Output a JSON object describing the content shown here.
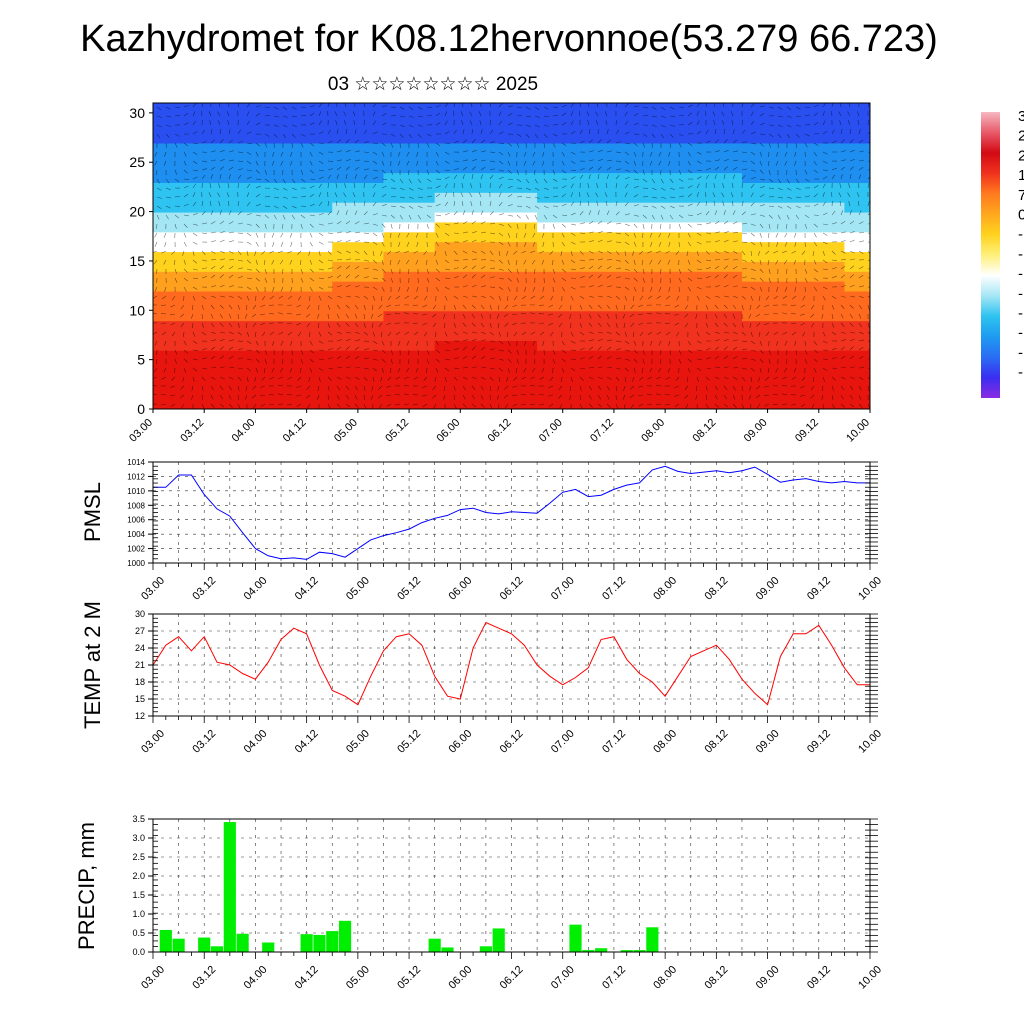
{
  "title": "Kazhydromet for K08.12hervonnoe(53.279 66.723)",
  "subtitle": "03 ☆☆☆☆☆☆☆☆ 2025",
  "time_ticks": [
    "03.00",
    "03.12",
    "04.00",
    "04.12",
    "05.00",
    "05.12",
    "06.00",
    "06.12",
    "07.00",
    "07.12",
    "08.00",
    "08.12",
    "09.00",
    "09.12",
    "10.00"
  ],
  "colorbar": {
    "stops": [
      "#8a2be2",
      "#3a2ef0",
      "#2a6df4",
      "#1e9bf0",
      "#2ec3f0",
      "#a5e6f5",
      "#ffffff",
      "#fff07a",
      "#ffd21e",
      "#ffa81e",
      "#ff7a1e",
      "#f0321e",
      "#d20a14",
      "#e85a6a",
      "#f5b8c0"
    ],
    "visible_labels": [
      "3",
      "2",
      "2",
      "1",
      "7",
      "0",
      "-",
      "-",
      "-",
      "-",
      "-",
      "-",
      "-",
      "-"
    ]
  },
  "chart_data": [
    {
      "type": "heatmap",
      "title": "",
      "xlabel": "",
      "ylabel": "",
      "x_ticks": [
        "03.00",
        "03.12",
        "04.00",
        "04.12",
        "05.00",
        "05.12",
        "06.00",
        "06.12",
        "07.00",
        "07.12",
        "08.00",
        "08.12",
        "09.00",
        "09.12",
        "10.00"
      ],
      "y_ticks": [
        0,
        5,
        10,
        15,
        20,
        25,
        30
      ],
      "ylim": [
        0,
        31
      ],
      "note_overlay": "wind barbs",
      "cold_layer_level": [
        16,
        16,
        16,
        16,
        17,
        18,
        19,
        19,
        18,
        18,
        18,
        18,
        17,
        17,
        16
      ]
    },
    {
      "type": "line",
      "ylabel": "PMSL",
      "ylim": [
        1000,
        1014
      ],
      "y_ticks": [
        1000,
        1002,
        1004,
        1006,
        1008,
        1010,
        1012,
        1014
      ],
      "color": "#0000ff",
      "x": [
        0,
        3,
        6,
        9,
        12,
        15,
        18,
        21,
        24,
        27,
        30,
        33,
        36,
        39,
        42,
        45,
        48,
        51,
        54,
        57,
        60,
        63,
        66,
        69,
        72,
        75,
        78,
        81,
        84,
        87,
        90,
        93,
        96,
        99,
        102,
        105,
        108,
        111,
        114,
        117,
        120,
        123,
        126,
        129,
        132,
        135,
        138,
        141,
        144,
        147,
        150,
        153,
        156,
        159,
        162,
        165,
        168
      ],
      "values": [
        1010.5,
        1010.5,
        1012.2,
        1012.2,
        1009.5,
        1007.5,
        1006.5,
        1004.2,
        1002.0,
        1001.0,
        1000.6,
        1000.7,
        1000.5,
        1001.5,
        1001.3,
        1000.8,
        1002.0,
        1003.2,
        1003.8,
        1004.2,
        1004.7,
        1005.6,
        1006.2,
        1006.6,
        1007.4,
        1007.6,
        1007.0,
        1006.8,
        1007.1,
        1007.0,
        1006.9,
        1008.3,
        1009.8,
        1010.2,
        1009.2,
        1009.4,
        1010.2,
        1010.8,
        1011.1,
        1012.9,
        1013.4,
        1012.7,
        1012.4,
        1012.6,
        1012.8,
        1012.5,
        1012.8,
        1013.3,
        1012.3,
        1011.2,
        1011.5,
        1011.7,
        1011.3,
        1011.1,
        1011.3,
        1011.1,
        1011.1
      ]
    },
    {
      "type": "line",
      "ylabel": "TEMP at 2 M",
      "ylim": [
        12,
        30
      ],
      "y_ticks": [
        12,
        15,
        18,
        21,
        24,
        27,
        30
      ],
      "color": "#ff0000",
      "x": [
        0,
        3,
        6,
        9,
        12,
        15,
        18,
        21,
        24,
        27,
        30,
        33,
        36,
        39,
        42,
        45,
        48,
        51,
        54,
        57,
        60,
        63,
        66,
        69,
        72,
        75,
        78,
        81,
        84,
        87,
        90,
        93,
        96,
        99,
        102,
        105,
        108,
        111,
        114,
        117,
        120,
        123,
        126,
        129,
        132,
        135,
        138,
        141,
        144,
        147,
        150,
        153,
        156,
        159,
        162,
        165,
        168
      ],
      "values": [
        21.0,
        24.5,
        26.0,
        23.5,
        26.0,
        21.5,
        21.0,
        19.5,
        18.5,
        21.5,
        25.5,
        27.5,
        26.5,
        21.0,
        16.5,
        15.5,
        14.0,
        19.0,
        23.5,
        26.0,
        26.5,
        24.5,
        19.0,
        15.5,
        15.0,
        24.0,
        28.5,
        27.5,
        26.5,
        24.5,
        21.0,
        19.0,
        17.5,
        18.8,
        20.5,
        25.5,
        26.0,
        22.0,
        19.5,
        18.0,
        15.5,
        19.0,
        22.5,
        23.5,
        24.5,
        22.0,
        18.5,
        16.0,
        14.0,
        22.5,
        26.5,
        26.5,
        28.0,
        24.5,
        20.5,
        17.5,
        17.5
      ]
    },
    {
      "type": "bar",
      "ylabel": "PRECIP, mm",
      "ylim": [
        0,
        3.5
      ],
      "y_ticks": [
        0.0,
        0.5,
        1.0,
        1.5,
        2.0,
        2.5,
        3.0,
        3.5
      ],
      "color": "#00ee00",
      "x": [
        3,
        6,
        12,
        15,
        18,
        21,
        27,
        36,
        39,
        42,
        45,
        66,
        69,
        78,
        81,
        99,
        102,
        105,
        111,
        114,
        117,
        120,
        123
      ],
      "values": [
        0.58,
        0.35,
        0.38,
        0.15,
        3.42,
        0.48,
        0.25,
        0.47,
        0.45,
        0.55,
        0.82,
        0.35,
        0.12,
        0.15,
        0.62,
        0.72,
        0.05,
        0.1,
        0.05,
        0.05,
        0.65,
        0.0,
        0.0
      ]
    }
  ]
}
